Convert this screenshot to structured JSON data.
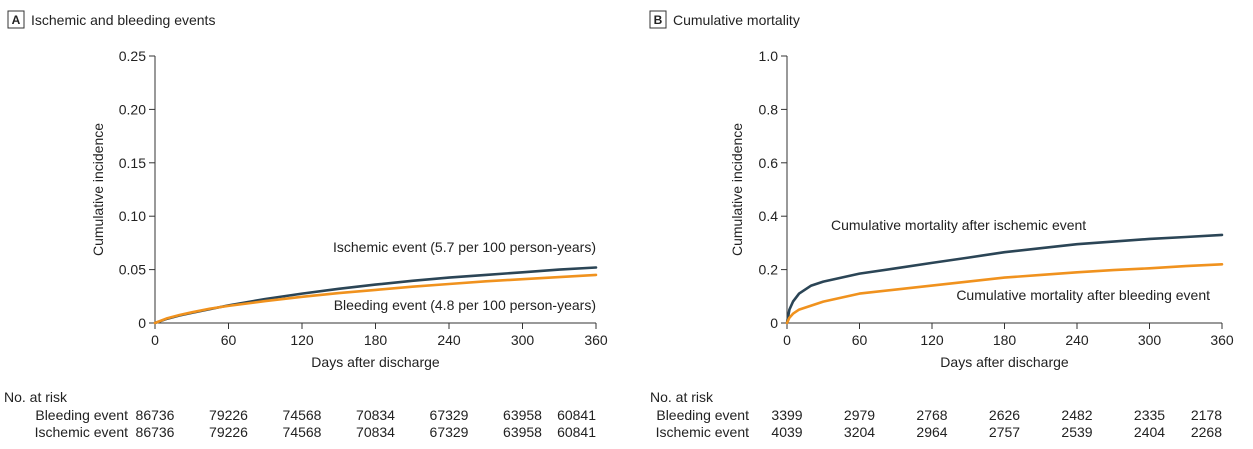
{
  "chart_data": [
    {
      "type": "line",
      "panel_letter": "A",
      "title": "Ischemic and bleeding events",
      "xlabel": "Days after discharge",
      "ylabel": "Cumulative incidence",
      "xlim": [
        0,
        360
      ],
      "ylim": [
        0,
        0.25
      ],
      "xticks": [
        0,
        60,
        120,
        180,
        240,
        300,
        360
      ],
      "yticks": [
        0,
        0.05,
        0.1,
        0.15,
        0.2,
        0.25
      ],
      "ytick_labels": [
        "0",
        "0.05",
        "0.10",
        "0.15",
        "0.20",
        "0.25"
      ],
      "grid": false,
      "series": [
        {
          "name": "Ischemic event",
          "label": "Ischemic event (5.7 per 100 person-years)",
          "color": "#2b4556",
          "x": [
            0,
            10,
            20,
            30,
            45,
            60,
            90,
            120,
            150,
            180,
            210,
            240,
            270,
            300,
            330,
            360
          ],
          "y": [
            0,
            0.004,
            0.007,
            0.0095,
            0.013,
            0.0165,
            0.0225,
            0.0275,
            0.032,
            0.036,
            0.0395,
            0.0425,
            0.045,
            0.0475,
            0.05,
            0.052
          ]
        },
        {
          "name": "Bleeding event",
          "label": "Bleeding event (4.8 per 100 person-years)",
          "color": "#f0921e",
          "x": [
            0,
            10,
            20,
            30,
            45,
            60,
            90,
            120,
            150,
            180,
            210,
            240,
            270,
            300,
            330,
            360
          ],
          "y": [
            0,
            0.0045,
            0.0075,
            0.01,
            0.0135,
            0.016,
            0.0205,
            0.0245,
            0.028,
            0.031,
            0.034,
            0.0365,
            0.039,
            0.041,
            0.043,
            0.045
          ]
        }
      ],
      "risk_table": {
        "heading": "No. at risk",
        "rows": [
          {
            "label": "Bleeding event",
            "values": [
              "86736",
              "79226",
              "74568",
              "70834",
              "67329",
              "63958",
              "60841"
            ]
          },
          {
            "label": "Ischemic event",
            "values": [
              "86736",
              "79226",
              "74568",
              "70834",
              "67329",
              "63958",
              "60841"
            ]
          }
        ]
      }
    },
    {
      "type": "line",
      "panel_letter": "B",
      "title": "Cumulative mortality",
      "xlabel": "Days after discharge",
      "ylabel": "Cumulative incidence",
      "xlim": [
        0,
        360
      ],
      "ylim": [
        0,
        1.0
      ],
      "xticks": [
        0,
        60,
        120,
        180,
        240,
        300,
        360
      ],
      "yticks": [
        0,
        0.2,
        0.4,
        0.6,
        0.8,
        1.0
      ],
      "ytick_labels": [
        "0",
        "0.2",
        "0.4",
        "0.6",
        "0.8",
        "1.0"
      ],
      "grid": false,
      "series": [
        {
          "name": "Cumulative mortality after ischemic event",
          "label": "Cumulative mortality after ischemic event",
          "color": "#2b4556",
          "x": [
            0,
            2,
            5,
            10,
            20,
            30,
            45,
            60,
            90,
            120,
            150,
            180,
            210,
            240,
            270,
            300,
            330,
            360
          ],
          "y": [
            0,
            0.05,
            0.08,
            0.11,
            0.14,
            0.155,
            0.17,
            0.185,
            0.205,
            0.225,
            0.245,
            0.265,
            0.28,
            0.295,
            0.305,
            0.315,
            0.322,
            0.33
          ]
        },
        {
          "name": "Cumulative mortality after bleeding event",
          "label": "Cumulative mortality after bleeding event",
          "color": "#f0921e",
          "x": [
            0,
            2,
            5,
            10,
            20,
            30,
            45,
            60,
            90,
            120,
            150,
            180,
            210,
            240,
            270,
            300,
            330,
            360
          ],
          "y": [
            0,
            0.02,
            0.035,
            0.05,
            0.065,
            0.08,
            0.095,
            0.11,
            0.125,
            0.14,
            0.155,
            0.17,
            0.18,
            0.19,
            0.198,
            0.205,
            0.213,
            0.22
          ]
        }
      ],
      "risk_table": {
        "heading": "No. at risk",
        "rows": [
          {
            "label": "Bleeding event",
            "values": [
              "3399",
              "2979",
              "2768",
              "2626",
              "2482",
              "2335",
              "2178"
            ]
          },
          {
            "label": "Ischemic event",
            "values": [
              "4039",
              "3204",
              "2964",
              "2757",
              "2539",
              "2404",
              "2268"
            ]
          }
        ]
      }
    }
  ]
}
